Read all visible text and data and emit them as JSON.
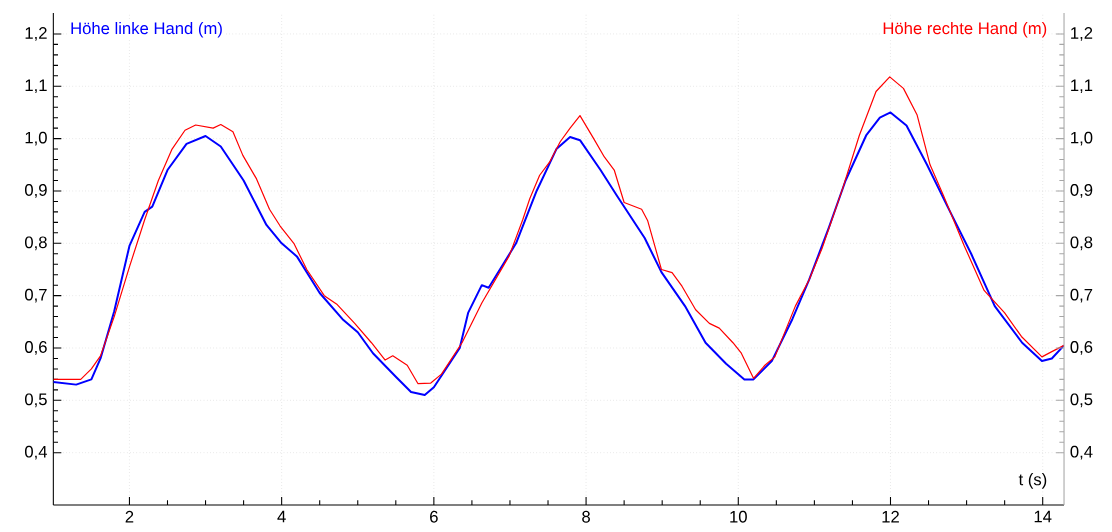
{
  "chart_data": {
    "type": "line",
    "xlabel": "t (s)",
    "xlim": [
      1,
      14.28
    ],
    "xticks": [
      2,
      4,
      6,
      8,
      10,
      12,
      14
    ],
    "ylim": [
      0.3,
      1.24
    ],
    "yticks": [
      {
        "value": 0.4,
        "label": "0,4"
      },
      {
        "value": 0.5,
        "label": "0,5"
      },
      {
        "value": 0.6,
        "label": "0,6"
      },
      {
        "value": 0.7,
        "label": "0,7"
      },
      {
        "value": 0.8,
        "label": "0,8"
      },
      {
        "value": 0.9,
        "label": "0,9"
      },
      {
        "value": 1.0,
        "label": "1,0"
      },
      {
        "value": 1.1,
        "label": "1,1"
      },
      {
        "value": 1.2,
        "label": "1,2"
      }
    ],
    "y2lim": [
      0.3,
      1.24
    ],
    "y2ticks": [
      {
        "value": 0.4,
        "label": "0,4"
      },
      {
        "value": 0.5,
        "label": "0,5"
      },
      {
        "value": 0.6,
        "label": "0,6"
      },
      {
        "value": 0.7,
        "label": "0,7"
      },
      {
        "value": 0.8,
        "label": "0,8"
      },
      {
        "value": 0.9,
        "label": "0,9"
      },
      {
        "value": 1.0,
        "label": "1,0"
      },
      {
        "value": 1.1,
        "label": "1,1"
      },
      {
        "value": 1.2,
        "label": "1,2"
      }
    ],
    "grid": true,
    "series": [
      {
        "name": "Höhe linke Hand (m)",
        "color": "#0000ff",
        "x": [
          1.0,
          1.3,
          1.5,
          1.62,
          1.8,
          2.0,
          2.2,
          2.3,
          2.5,
          2.75,
          3.0,
          3.2,
          3.5,
          3.8,
          4.0,
          4.2,
          4.5,
          4.8,
          5.0,
          5.2,
          5.5,
          5.7,
          5.88,
          6.0,
          6.34,
          6.45,
          6.63,
          6.72,
          7.08,
          7.35,
          7.61,
          7.79,
          7.92,
          8.19,
          8.41,
          8.77,
          8.99,
          9.3,
          9.57,
          9.84,
          10.08,
          10.2,
          10.44,
          10.71,
          10.93,
          11.19,
          11.41,
          11.68,
          11.86,
          12.0,
          12.21,
          12.48,
          12.75,
          13.06,
          13.37,
          13.73,
          13.99,
          14.12,
          14.28
        ],
        "values": [
          0.535,
          0.53,
          0.54,
          0.58,
          0.67,
          0.795,
          0.86,
          0.87,
          0.94,
          0.99,
          1.005,
          0.985,
          0.92,
          0.835,
          0.8,
          0.775,
          0.705,
          0.655,
          0.63,
          0.59,
          0.545,
          0.516,
          0.51,
          0.525,
          0.6,
          0.667,
          0.72,
          0.715,
          0.8,
          0.9,
          0.98,
          1.003,
          0.997,
          0.94,
          0.89,
          0.81,
          0.745,
          0.68,
          0.61,
          0.57,
          0.54,
          0.54,
          0.575,
          0.655,
          0.73,
          0.83,
          0.92,
          1.006,
          1.04,
          1.05,
          1.025,
          0.95,
          0.87,
          0.78,
          0.68,
          0.61,
          0.575,
          0.58,
          0.605
        ]
      },
      {
        "name": "Höhe rechte Hand (m)",
        "color": "#ff0000",
        "x": [
          1.0,
          1.36,
          1.5,
          1.62,
          1.8,
          2.0,
          2.2,
          2.38,
          2.56,
          2.73,
          2.87,
          3.1,
          3.2,
          3.36,
          3.49,
          3.67,
          3.84,
          3.98,
          4.16,
          4.33,
          4.56,
          4.73,
          4.96,
          5.18,
          5.36,
          5.46,
          5.65,
          5.79,
          5.96,
          6.1,
          6.37,
          6.63,
          6.99,
          7.17,
          7.26,
          7.39,
          7.52,
          7.66,
          7.79,
          7.92,
          8.1,
          8.24,
          8.37,
          8.5,
          8.73,
          8.81,
          8.99,
          9.13,
          9.26,
          9.44,
          9.62,
          9.75,
          9.93,
          10.04,
          10.2,
          10.35,
          10.48,
          10.75,
          10.93,
          11.1,
          11.37,
          11.59,
          11.81,
          11.99,
          12.17,
          12.35,
          12.52,
          12.7,
          12.97,
          13.23,
          13.5,
          13.72,
          13.99,
          14.12,
          14.28
        ],
        "values": [
          0.54,
          0.54,
          0.56,
          0.585,
          0.66,
          0.755,
          0.845,
          0.92,
          0.98,
          1.016,
          1.026,
          1.02,
          1.027,
          1.013,
          0.968,
          0.923,
          0.865,
          0.833,
          0.8,
          0.75,
          0.7,
          0.683,
          0.647,
          0.61,
          0.577,
          0.585,
          0.567,
          0.532,
          0.533,
          0.55,
          0.61,
          0.686,
          0.776,
          0.846,
          0.885,
          0.93,
          0.955,
          0.994,
          1.02,
          1.044,
          1.0,
          0.965,
          0.94,
          0.878,
          0.865,
          0.843,
          0.75,
          0.744,
          0.718,
          0.673,
          0.647,
          0.638,
          0.61,
          0.59,
          0.542,
          0.567,
          0.583,
          0.68,
          0.73,
          0.79,
          0.904,
          1.006,
          1.09,
          1.118,
          1.096,
          1.045,
          0.95,
          0.89,
          0.795,
          0.71,
          0.667,
          0.622,
          0.583,
          0.593,
          0.605
        ]
      }
    ]
  }
}
